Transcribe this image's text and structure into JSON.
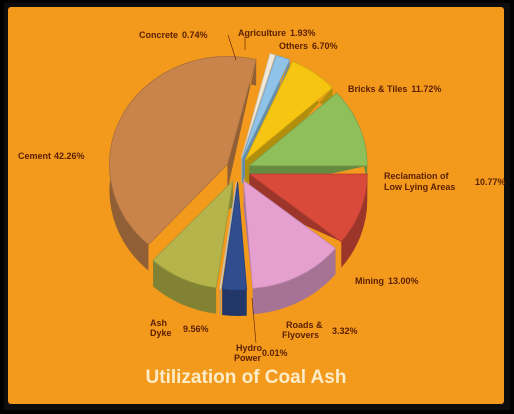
{
  "chart_data": {
    "type": "pie",
    "title": "Utilization of Coal Ash",
    "slices": [
      {
        "name": "Cement",
        "label": "Cement",
        "value_label": "42.26%",
        "value": 42.26,
        "color": "#c8844a"
      },
      {
        "name": "Concrete",
        "label": "Concrete",
        "value_label": "0.74%",
        "value": 0.74,
        "color": "#f1e9d6"
      },
      {
        "name": "Agriculture",
        "label": "Agriculture",
        "value_label": "1.93%",
        "value": 1.93,
        "color": "#8fc3e8"
      },
      {
        "name": "Others",
        "label": "Others",
        "value_label": "6.70%",
        "value": 6.7,
        "color": "#f6c511"
      },
      {
        "name": "Bricks & Tiles",
        "label": "Bricks & Tiles",
        "value_label": "11.72%",
        "value": 11.72,
        "color": "#8fbf5a"
      },
      {
        "name": "Reclamation of Low Lying Areas",
        "label_lines": [
          "Reclamation of",
          "Low Lying Areas"
        ],
        "value_label": "10.77%",
        "value": 10.77,
        "color": "#d94a3a"
      },
      {
        "name": "Mining",
        "label": "Mining",
        "value_label": "13.00%",
        "value": 13.0,
        "color": "#e6a0cf"
      },
      {
        "name": "Roads & Flyovers",
        "label_lines": [
          "Roads &",
          "Flyovers"
        ],
        "value_label": "3.32%",
        "value": 3.32,
        "color": "#2f4d8f"
      },
      {
        "name": "Hydro Power",
        "label_lines": [
          "Hydro",
          "Power"
        ],
        "value_label": "0.01%",
        "value": 0.01,
        "color": "#e8e0c8"
      },
      {
        "name": "Ash Dyke",
        "label_lines": [
          "Ash",
          "Dyke"
        ],
        "value_label": "9.56%",
        "value": 9.56,
        "color": "#b4b44a"
      }
    ],
    "legend": "none"
  }
}
